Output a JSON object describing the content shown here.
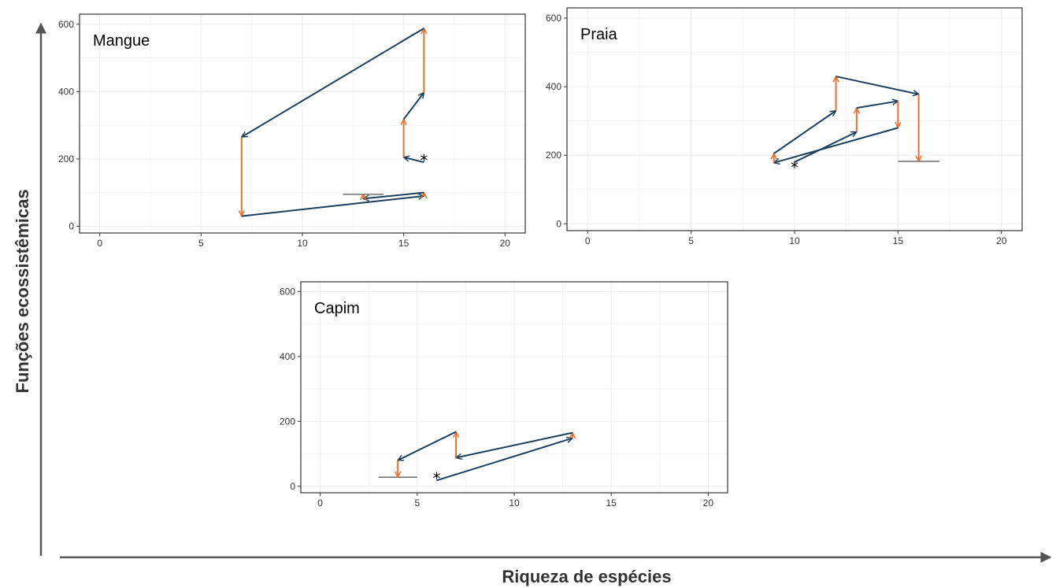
{
  "figure": {
    "xlabel": "Riqueza de espécies",
    "ylabel": "Funções ecossistêmicas"
  },
  "colors": {
    "richness_arrow": "#1b3f5e",
    "function_arrow": "#ea6f2c",
    "baseline": "#6b6b6b",
    "grid": "#ececec",
    "panel_border": "#333333",
    "axis": "#555555"
  },
  "chart_data": [
    {
      "type": "line",
      "title": "Mangue",
      "xlim": [
        -1,
        21
      ],
      "ylim": [
        -20,
        630
      ],
      "xticks": [
        0,
        5,
        10,
        15,
        20
      ],
      "yticks": [
        0,
        200,
        400,
        600
      ],
      "grid": true,
      "start": {
        "marker": "*",
        "x": 16,
        "y": 200
      },
      "baseline": {
        "x0": 12,
        "x1": 14,
        "y": 95
      },
      "arrows": [
        {
          "kind": "richness",
          "from": [
            16,
            190
          ],
          "to": [
            15,
            205
          ]
        },
        {
          "kind": "function",
          "from": [
            15,
            205
          ],
          "to": [
            15,
            318
          ]
        },
        {
          "kind": "richness",
          "from": [
            15,
            318
          ],
          "to": [
            16,
            397
          ]
        },
        {
          "kind": "function",
          "from": [
            16,
            397
          ],
          "to": [
            16,
            588
          ]
        },
        {
          "kind": "richness",
          "from": [
            16,
            588
          ],
          "to": [
            7,
            265
          ]
        },
        {
          "kind": "function",
          "from": [
            7,
            265
          ],
          "to": [
            7,
            30
          ]
        },
        {
          "kind": "richness",
          "from": [
            7,
            30
          ],
          "to": [
            16,
            90
          ]
        },
        {
          "kind": "function",
          "from": [
            16,
            90
          ],
          "to": [
            16,
            100
          ]
        },
        {
          "kind": "richness",
          "from": [
            16,
            100
          ],
          "to": [
            13,
            82
          ]
        },
        {
          "kind": "function",
          "from": [
            13,
            82
          ],
          "to": [
            13,
            95
          ]
        }
      ]
    },
    {
      "type": "line",
      "title": "Praia",
      "xlim": [
        -1,
        21
      ],
      "ylim": [
        -20,
        630
      ],
      "xticks": [
        0,
        5,
        10,
        15,
        20
      ],
      "yticks": [
        0,
        200,
        400,
        600
      ],
      "grid": true,
      "start": {
        "marker": "*",
        "x": 10,
        "y": 168
      },
      "baseline": {
        "x0": 15,
        "x1": 17,
        "y": 182
      },
      "arrows": [
        {
          "kind": "richness",
          "from": [
            10,
            180
          ],
          "to": [
            13,
            268
          ]
        },
        {
          "kind": "function",
          "from": [
            13,
            268
          ],
          "to": [
            13,
            338
          ]
        },
        {
          "kind": "richness",
          "from": [
            13,
            338
          ],
          "to": [
            15,
            358
          ]
        },
        {
          "kind": "function",
          "from": [
            15,
            358
          ],
          "to": [
            15,
            280
          ]
        },
        {
          "kind": "richness",
          "from": [
            15,
            280
          ],
          "to": [
            9,
            178
          ]
        },
        {
          "kind": "function",
          "from": [
            9,
            178
          ],
          "to": [
            9,
            205
          ]
        },
        {
          "kind": "richness",
          "from": [
            9,
            205
          ],
          "to": [
            12,
            330
          ]
        },
        {
          "kind": "function",
          "from": [
            12,
            330
          ],
          "to": [
            12,
            430
          ]
        },
        {
          "kind": "richness",
          "from": [
            12,
            430
          ],
          "to": [
            16,
            378
          ]
        },
        {
          "kind": "function",
          "from": [
            16,
            378
          ],
          "to": [
            16,
            182
          ]
        }
      ]
    },
    {
      "type": "line",
      "title": "Capim",
      "xlim": [
        -1,
        21
      ],
      "ylim": [
        -20,
        630
      ],
      "xticks": [
        0,
        5,
        10,
        15,
        20
      ],
      "yticks": [
        0,
        200,
        400,
        600
      ],
      "grid": true,
      "start": {
        "marker": "*",
        "x": 6,
        "y": 28
      },
      "baseline": {
        "x0": 3,
        "x1": 5,
        "y": 28
      },
      "arrows": [
        {
          "kind": "richness",
          "from": [
            6,
            18
          ],
          "to": [
            13,
            148
          ]
        },
        {
          "kind": "function",
          "from": [
            13,
            148
          ],
          "to": [
            13,
            165
          ]
        },
        {
          "kind": "richness",
          "from": [
            13,
            165
          ],
          "to": [
            7,
            88
          ]
        },
        {
          "kind": "function",
          "from": [
            7,
            88
          ],
          "to": [
            7,
            168
          ]
        },
        {
          "kind": "richness",
          "from": [
            7,
            168
          ],
          "to": [
            4,
            80
          ]
        },
        {
          "kind": "function",
          "from": [
            4,
            80
          ],
          "to": [
            4,
            28
          ]
        }
      ]
    }
  ]
}
